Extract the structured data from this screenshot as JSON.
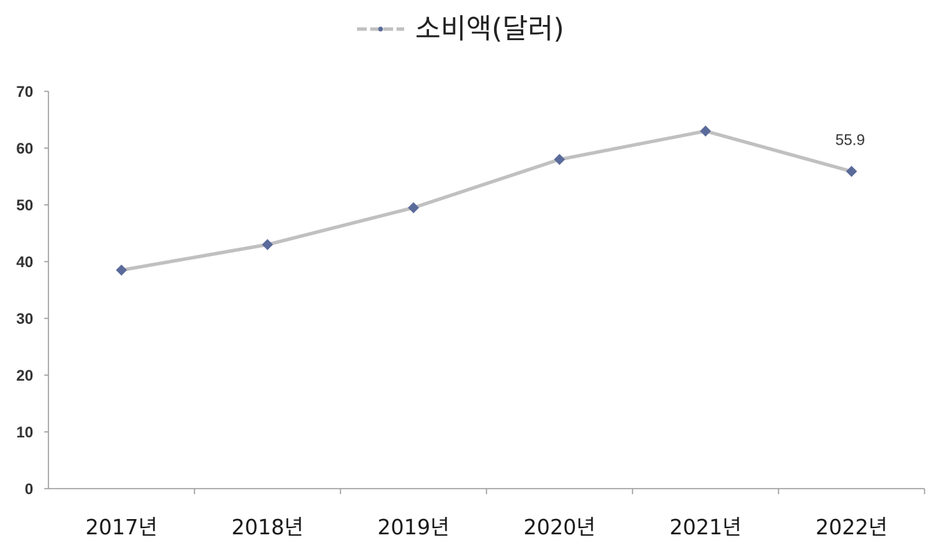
{
  "chart_data": {
    "type": "line",
    "categories": [
      "2017년",
      "2018년",
      "2019년",
      "2020년",
      "2021년",
      "2022년"
    ],
    "series": [
      {
        "name": "소비액(달러)",
        "values": [
          38.5,
          43,
          49.5,
          58,
          63,
          55.9
        ],
        "color": "#c0c0c0",
        "marker_color": "#5a6a9a"
      }
    ],
    "data_labels": [
      {
        "index": 5,
        "text": "55.9"
      }
    ],
    "yticks": [
      "0",
      "10",
      "20",
      "30",
      "40",
      "50",
      "60",
      "70"
    ],
    "ylim": [
      0,
      70
    ],
    "grid": false,
    "legend_position": "top"
  }
}
